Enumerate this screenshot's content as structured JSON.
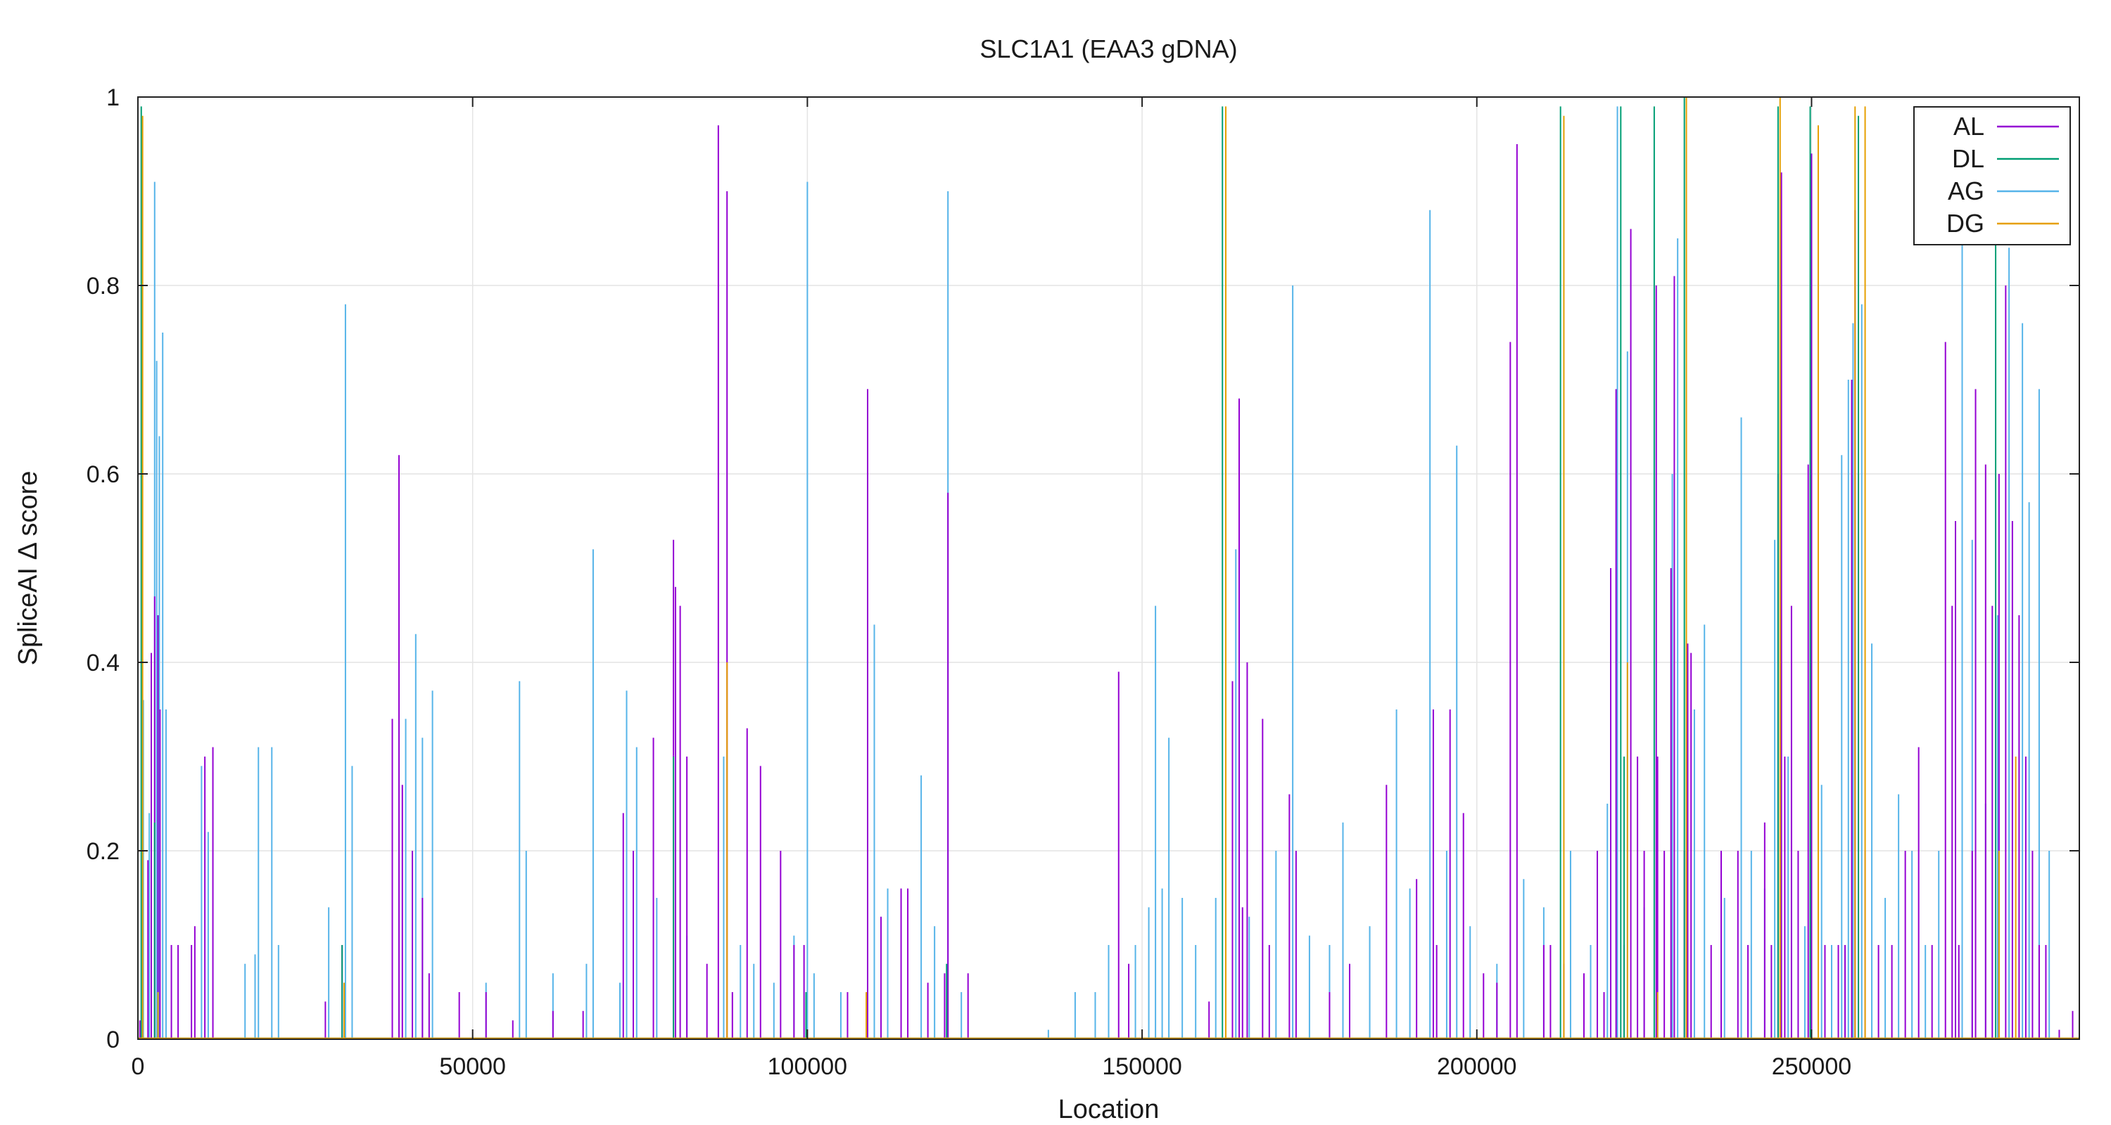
{
  "chart_data": {
    "type": "line",
    "title": "SLC1A1 (EAA3 gDNA)",
    "xlabel": "Location",
    "ylabel": "SpliceAI Δ score",
    "xlim": [
      0,
      290000
    ],
    "ylim": [
      0,
      1
    ],
    "grid": true,
    "legend_position": "top-right",
    "x_ticks": [
      0,
      50000,
      100000,
      150000,
      200000,
      250000
    ],
    "y_ticks": [
      0,
      0.2,
      0.4,
      0.6,
      0.8,
      1
    ],
    "x_tick_labels": [
      "0",
      "50000",
      "100000",
      "150000",
      "200000",
      "250000"
    ],
    "y_tick_labels": [
      "0",
      "0.2",
      "0.4",
      "0.6",
      "0.8",
      "1"
    ],
    "series": [
      {
        "name": "AL",
        "color": "#9400d3",
        "x": [
          300,
          1500,
          2000,
          2500,
          3000,
          3300,
          5000,
          6000,
          8000,
          8500,
          10000,
          11200,
          28000,
          30500,
          38000,
          39000,
          39500,
          41000,
          42500,
          43500,
          48000,
          52000,
          56000,
          62000,
          66500,
          72500,
          74000,
          77000,
          80000,
          80300,
          81000,
          82000,
          85000,
          86700,
          88000,
          88800,
          91000,
          93000,
          96000,
          98000,
          99500,
          106000,
          109000,
          111000,
          114000,
          115000,
          118000,
          120500,
          121000,
          124000,
          146500,
          148000,
          160000,
          162500,
          163500,
          164500,
          165000,
          165700,
          168000,
          169000,
          172000,
          173000,
          178000,
          181000,
          186500,
          191000,
          193500,
          194000,
          196000,
          198000,
          201000,
          203000,
          205000,
          206000,
          210000,
          211000,
          213000,
          216000,
          218000,
          219000,
          220000,
          220800,
          222000,
          223000,
          224000,
          225000,
          226800,
          227000,
          228000,
          229000,
          229500,
          231000,
          231500,
          232000,
          235000,
          236500,
          239000,
          240500,
          243000,
          244000,
          245000,
          245500,
          246000,
          247000,
          248000,
          249500,
          250000,
          252000,
          254000,
          255000,
          256000,
          256500,
          257000,
          258000,
          260000,
          262000,
          264000,
          266000,
          268000,
          270000,
          271000,
          271500,
          272000,
          274000,
          274500,
          276000,
          277000,
          278000,
          279000,
          280000,
          281000,
          282000,
          283000,
          284000,
          285000,
          287000,
          289000
        ],
        "y": [
          0.02,
          0.19,
          0.41,
          0.47,
          0.45,
          0.35,
          0.1,
          0.1,
          0.1,
          0.12,
          0.3,
          0.31,
          0.04,
          0.1,
          0.34,
          0.62,
          0.27,
          0.2,
          0.15,
          0.07,
          0.05,
          0.05,
          0.02,
          0.03,
          0.03,
          0.24,
          0.2,
          0.32,
          0.53,
          0.48,
          0.46,
          0.3,
          0.08,
          0.97,
          0.9,
          0.05,
          0.33,
          0.29,
          0.2,
          0.1,
          0.1,
          0.05,
          0.69,
          0.13,
          0.16,
          0.16,
          0.06,
          0.07,
          0.58,
          0.07,
          0.39,
          0.08,
          0.04,
          0.32,
          0.38,
          0.68,
          0.14,
          0.4,
          0.34,
          0.1,
          0.26,
          0.2,
          0.05,
          0.08,
          0.27,
          0.17,
          0.35,
          0.1,
          0.35,
          0.24,
          0.07,
          0.06,
          0.74,
          0.95,
          0.1,
          0.1,
          0.08,
          0.07,
          0.2,
          0.05,
          0.5,
          0.69,
          0.1,
          0.86,
          0.3,
          0.2,
          0.8,
          0.3,
          0.2,
          0.5,
          0.81,
          0.2,
          0.42,
          0.41,
          0.1,
          0.2,
          0.2,
          0.1,
          0.23,
          0.1,
          0.6,
          0.92,
          0.3,
          0.46,
          0.2,
          0.61,
          0.94,
          0.1,
          0.1,
          0.1,
          0.7,
          0.88,
          0.6,
          0.2,
          0.1,
          0.1,
          0.2,
          0.31,
          0.1,
          0.74,
          0.46,
          0.55,
          0.1,
          0.2,
          0.69,
          0.61,
          0.46,
          0.6,
          0.8,
          0.55,
          0.45,
          0.3,
          0.2,
          0.1,
          0.1,
          0.01,
          0.03
        ]
      },
      {
        "name": "DL",
        "color": "#009e73",
        "x": [
          500,
          2500,
          30500,
          80000,
          99800,
          120800,
          162000,
          212500,
          221500,
          222000,
          226500,
          231000,
          245000,
          249800,
          257000,
          277500
        ],
        "y": [
          0.99,
          0.23,
          0.1,
          0.3,
          0.05,
          0.08,
          0.99,
          0.99,
          0.99,
          0.3,
          0.99,
          1.0,
          0.99,
          0.99,
          0.98,
          0.99
        ]
      },
      {
        "name": "AG",
        "color": "#56b4e9",
        "x": [
          800,
          1700,
          2500,
          2800,
          3200,
          3700,
          4200,
          9500,
          10500,
          16000,
          17500,
          18000,
          20000,
          21000,
          28500,
          31000,
          32000,
          40000,
          41500,
          42500,
          44000,
          52000,
          57000,
          58000,
          62000,
          67000,
          68000,
          72000,
          73000,
          74500,
          77500,
          82000,
          87500,
          90000,
          92000,
          95000,
          98000,
          100000,
          101000,
          105000,
          110000,
          112000,
          117000,
          119000,
          121000,
          123000,
          136000,
          140000,
          143000,
          145000,
          149000,
          151000,
          152000,
          153000,
          154000,
          156000,
          158000,
          161000,
          164000,
          166000,
          170000,
          172500,
          175000,
          178000,
          180000,
          184000,
          188000,
          190000,
          193000,
          195500,
          197000,
          199000,
          203000,
          207000,
          210000,
          214000,
          217000,
          219500,
          221000,
          222500,
          225000,
          229200,
          230000,
          232500,
          234000,
          237000,
          239500,
          241000,
          243000,
          244500,
          246500,
          249000,
          251500,
          253000,
          254500,
          255500,
          256200,
          257500,
          259000,
          261000,
          263000,
          265000,
          267000,
          269000,
          272500,
          274000,
          276000,
          277800,
          279500,
          281500,
          282500,
          284000,
          285500
        ],
        "y": [
          0.36,
          0.24,
          0.91,
          0.72,
          0.64,
          0.75,
          0.35,
          0.29,
          0.22,
          0.08,
          0.09,
          0.31,
          0.31,
          0.1,
          0.14,
          0.78,
          0.29,
          0.34,
          0.43,
          0.32,
          0.37,
          0.06,
          0.38,
          0.2,
          0.07,
          0.08,
          0.52,
          0.06,
          0.37,
          0.31,
          0.15,
          0.11,
          0.3,
          0.1,
          0.08,
          0.06,
          0.11,
          0.91,
          0.07,
          0.05,
          0.44,
          0.16,
          0.28,
          0.12,
          0.9,
          0.05,
          0.01,
          0.05,
          0.05,
          0.1,
          0.1,
          0.14,
          0.46,
          0.16,
          0.32,
          0.15,
          0.1,
          0.15,
          0.52,
          0.13,
          0.2,
          0.8,
          0.11,
          0.1,
          0.23,
          0.12,
          0.35,
          0.16,
          0.88,
          0.2,
          0.63,
          0.12,
          0.08,
          0.17,
          0.14,
          0.2,
          0.1,
          0.25,
          0.99,
          0.73,
          0.14,
          0.6,
          0.85,
          0.35,
          0.44,
          0.15,
          0.66,
          0.2,
          0.16,
          0.53,
          0.3,
          0.12,
          0.27,
          0.1,
          0.62,
          0.7,
          0.76,
          0.78,
          0.42,
          0.15,
          0.26,
          0.2,
          0.1,
          0.2,
          0.85,
          0.53,
          0.25,
          0.45,
          0.84,
          0.76,
          0.57,
          0.69,
          0.2
        ]
      },
      {
        "name": "DG",
        "color": "#e69f00",
        "x": [
          700,
          3000,
          30800,
          88000,
          108800,
          162500,
          213000,
          222500,
          227000,
          231300,
          245300,
          251000,
          256500,
          258000,
          278000,
          280500
        ],
        "y": [
          0.98,
          0.05,
          0.06,
          0.4,
          0.05,
          0.99,
          0.98,
          0.4,
          0.05,
          1.0,
          1.0,
          0.97,
          0.99,
          0.99,
          0.2,
          0.3
        ]
      }
    ]
  }
}
